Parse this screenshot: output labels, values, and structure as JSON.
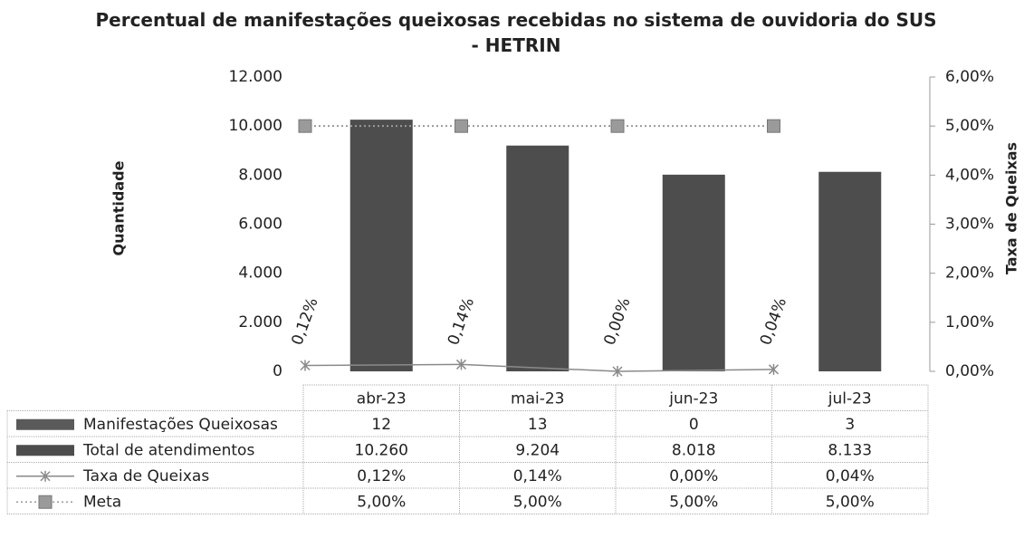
{
  "chart_data": {
    "type": "bar",
    "title": "Percentual de manifestações queixosas recebidas no sistema de ouvidoria do SUS - HETRIN",
    "y_label": "Quantidade",
    "y2_label": "Taxa de Queixas",
    "categories": [
      "abr-23",
      "mai-23",
      "jun-23",
      "jul-23"
    ],
    "series": [
      {
        "name": "Manifestações Queixosas",
        "type": "bar",
        "color": "#5a5a5a",
        "values": [
          12,
          13,
          0,
          3
        ]
      },
      {
        "name": "Total de atendimentos",
        "type": "bar",
        "color": "#4d4d4d",
        "values": [
          10260,
          9204,
          8018,
          8133
        ],
        "value_labels": [
          "10.260",
          "9.204",
          "8.018",
          "8.133"
        ]
      },
      {
        "name": "Taxa de Queixas",
        "type": "line",
        "axis": "y2",
        "color": "#8a8a8a",
        "marker": "x",
        "values": [
          0.12,
          0.14,
          0,
          0.04
        ],
        "value_labels": [
          "0,12%",
          "0,14%",
          "0,00%",
          "0,04%"
        ]
      },
      {
        "name": "Meta",
        "type": "line",
        "axis": "y2",
        "color": "#9a9a9a",
        "marker": "square",
        "dashed": true,
        "values": [
          5,
          5,
          5,
          5
        ],
        "value_labels": [
          "5,00%",
          "5,00%",
          "5,00%",
          "5,00%"
        ]
      }
    ],
    "ylim": [
      0,
      12000
    ],
    "yticks": [
      0,
      {
        "value": 2000,
        "label": "2.000"
      },
      {
        "value": 4000,
        "label": "4.000"
      },
      {
        "value": 6000,
        "label": "6.000"
      },
      {
        "value": 8000,
        "label": "8.000"
      },
      {
        "value": 10000,
        "label": "10.000"
      },
      {
        "value": 12000,
        "label": "12.000"
      }
    ],
    "y2lim": [
      0,
      6
    ],
    "y2ticks": [
      {
        "value": 0,
        "label": "0,00%"
      },
      {
        "value": 1,
        "label": "1,00%"
      },
      {
        "value": 2,
        "label": "2,00%"
      },
      {
        "value": 3,
        "label": "3,00%"
      },
      {
        "value": 4,
        "label": "4,00%"
      },
      {
        "value": 5,
        "label": "5,00%"
      },
      {
        "value": 6,
        "label": "6,00%"
      }
    ],
    "grid": false,
    "data_table": true
  }
}
